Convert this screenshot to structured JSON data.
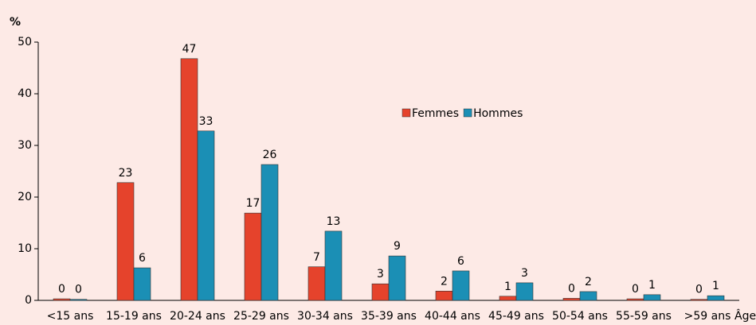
{
  "chart_data": {
    "type": "bar",
    "y_label": "%",
    "x_label": "Âge",
    "categories": [
      "<15 ans",
      "15-19 ans",
      "20-24 ans",
      "25-29 ans",
      "30-34 ans",
      "35-39 ans",
      "40-44 ans",
      "45-49 ans",
      "50-54 ans",
      "55-59 ans",
      ">59 ans"
    ],
    "series": [
      {
        "name": "Femmes",
        "color": "#e5432c",
        "values": [
          0.3,
          22.8,
          46.8,
          16.9,
          6.5,
          3.2,
          1.8,
          0.8,
          0.4,
          0.3,
          0.2
        ],
        "value_labels": [
          "0",
          "23",
          "47",
          "17",
          "7",
          "3",
          "2",
          "1",
          "0",
          "0",
          "0"
        ]
      },
      {
        "name": "Hommes",
        "color": "#1b8fb5",
        "values": [
          0.2,
          6.3,
          32.8,
          26.3,
          13.4,
          8.6,
          5.7,
          3.4,
          1.7,
          1.1,
          0.9
        ],
        "value_labels": [
          "0",
          "6",
          "33",
          "26",
          "13",
          "9",
          "6",
          "3",
          "2",
          "1",
          "1"
        ]
      }
    ],
    "ylim": [
      0,
      50
    ],
    "yticks": [
      0,
      10,
      20,
      30,
      40,
      50
    ],
    "grid": false,
    "legend": "top"
  }
}
